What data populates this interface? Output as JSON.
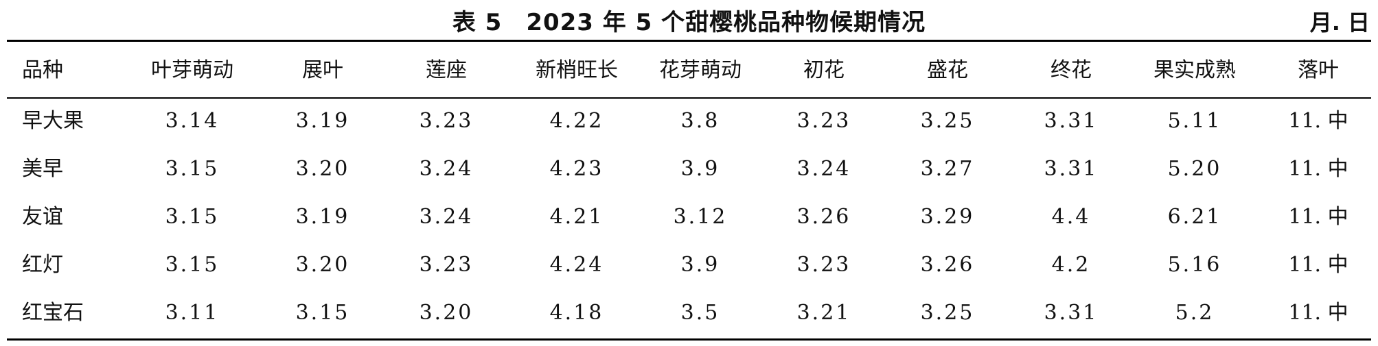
{
  "title": "表 5　2023 年 5 个甜樱桃品种物候期情况",
  "unit": "月. 日",
  "headers": [
    "品种",
    "叶芽萌动",
    "展叶",
    "莲座",
    "新梢旺长",
    "花芽萌动",
    "初花",
    "盛花",
    "终花",
    "果实成熟",
    "落叶"
  ],
  "rows": [
    [
      "早大果",
      "3.14",
      "3.19",
      "3.23",
      "4.22",
      "3.8",
      "3.23",
      "3.25",
      "3.31",
      "5.11",
      "11. 中"
    ],
    [
      "美早",
      "3.15",
      "3.20",
      "3.24",
      "4.23",
      "3.9",
      "3.24",
      "3.27",
      "3.31",
      "5.20",
      "11. 中"
    ],
    [
      "友谊",
      "3.15",
      "3.19",
      "3.24",
      "4.21",
      "3.12",
      "3.26",
      "3.29",
      "4.4",
      "6.21",
      "11. 中"
    ],
    [
      "红灯",
      "3.15",
      "3.20",
      "3.23",
      "4.24",
      "3.9",
      "3.23",
      "3.26",
      "4.2",
      "5.16",
      "11. 中"
    ],
    [
      "红宝石",
      "3.11",
      "3.15",
      "3.20",
      "4.18",
      "3.5",
      "3.21",
      "3.25",
      "3.31",
      "5.2",
      "11. 中"
    ]
  ]
}
